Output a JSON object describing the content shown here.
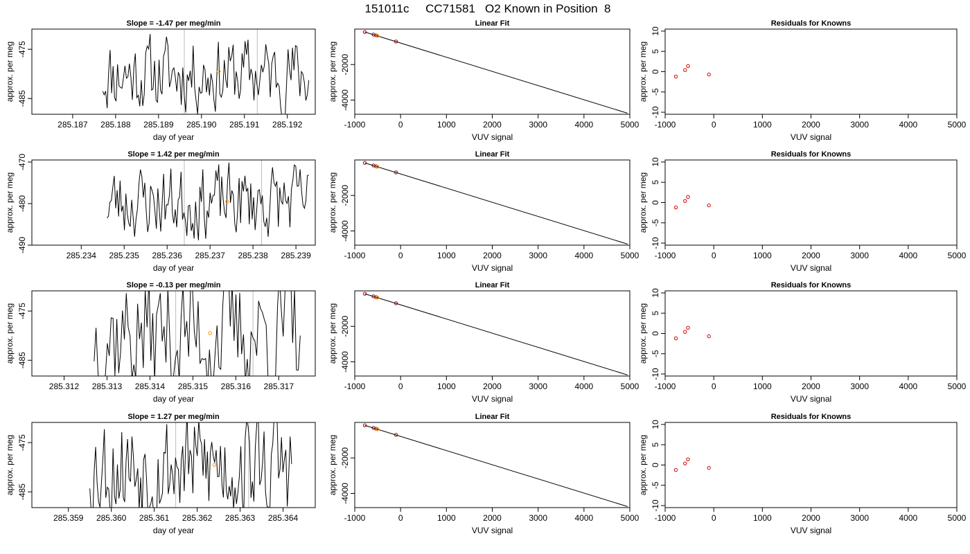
{
  "figure_title": "151011c     CC71581   O2 Known in Position  8",
  "chart_data": [
    {
      "type": "line",
      "title": "Slope =  -1.47  per meg/min",
      "xlabel": "day of year",
      "ylabel": "approx. per meg",
      "xlim": [
        285.18605,
        285.19265
      ],
      "ylim": [
        -488.2,
        -470.9
      ],
      "xticks": [
        "285.187",
        "285.188",
        "285.189",
        "285.190",
        "285.191",
        "285.192"
      ],
      "xtick_values": [
        285.187,
        285.188,
        285.189,
        285.19,
        285.191,
        285.192
      ],
      "yticks": [
        "-485",
        "-475"
      ],
      "ytick_values": [
        -485,
        -475
      ],
      "vlines": [
        285.1896,
        285.1913
      ],
      "series": [
        {
          "x_start": 285.1877,
          "x_end": 285.1925,
          "n": 140,
          "center": -480,
          "amplitude": 6.5,
          "seed": 11,
          "color": "#000000"
        }
      ],
      "points": [
        {
          "x": 285.1904,
          "y": -479.5,
          "color": "#ff8c00"
        }
      ],
      "grid": false
    },
    {
      "type": "line",
      "title": "Linear Fit",
      "xlabel": "VUV signal",
      "ylabel": "approx. per meg",
      "xlim": [
        -1000,
        5000
      ],
      "ylim": [
        -4800,
        0
      ],
      "xticks": [
        "-1000",
        "0",
        "1000",
        "2000",
        "3000",
        "4000",
        "5000"
      ],
      "xtick_values": [
        -1000,
        0,
        1000,
        2000,
        3000,
        4000,
        5000
      ],
      "yticks": [
        "-4000",
        "-2000"
      ],
      "ytick_values": [
        -4000,
        -2000
      ],
      "line": {
        "x": [
          -780,
          4950
        ],
        "y": [
          -165,
          -4740
        ],
        "color": "#000000"
      },
      "points": [
        {
          "x": -780,
          "y": -165,
          "color": "#8b0000"
        },
        {
          "x": -590,
          "y": -310,
          "color": "#8b0000"
        },
        {
          "x": -530,
          "y": -360,
          "color": "#8b0000"
        },
        {
          "x": -505,
          "y": -380,
          "color": "#ff8c00"
        },
        {
          "x": -100,
          "y": -700,
          "color": "#8b0000"
        }
      ],
      "grid": false
    },
    {
      "type": "scatter",
      "title": "Residuals for Knowns",
      "xlabel": "VUV signal",
      "ylabel": "approx. per meg",
      "xlim": [
        -1000,
        5000
      ],
      "ylim": [
        -10.5,
        10.5
      ],
      "xticks": [
        "-1000",
        "0",
        "1000",
        "2000",
        "3000",
        "4000",
        "5000"
      ],
      "xtick_values": [
        -1000,
        0,
        1000,
        2000,
        3000,
        4000,
        5000
      ],
      "yticks": [
        "-10",
        "-5",
        "0",
        "5",
        "10"
      ],
      "ytick_values": [
        -10,
        -5,
        0,
        5,
        10
      ],
      "points": [
        {
          "x": -780,
          "y": -1.2,
          "color": "#cc0000"
        },
        {
          "x": -590,
          "y": 0.4,
          "color": "#cc0000"
        },
        {
          "x": -530,
          "y": 1.4,
          "color": "#cc0000"
        },
        {
          "x": -100,
          "y": -0.7,
          "color": "#cc0000"
        }
      ],
      "grid": false
    },
    {
      "type": "line",
      "title": "Slope =  1.42  per meg/min",
      "xlabel": "day of year",
      "ylabel": "approx. per meg",
      "xlim": [
        285.23285,
        285.23945
      ],
      "ylim": [
        -490,
        -469.5
      ],
      "xticks": [
        "285.234",
        "285.235",
        "285.236",
        "285.237",
        "285.238",
        "285.239"
      ],
      "xtick_values": [
        285.234,
        285.235,
        285.236,
        285.237,
        285.238,
        285.239
      ],
      "yticks": [
        "-490",
        "-480",
        "-470"
      ],
      "ytick_values": [
        -490,
        -480,
        -470
      ],
      "vlines": [
        285.2364,
        285.2382
      ],
      "series": [
        {
          "x_start": 285.2346,
          "x_end": 285.2393,
          "n": 140,
          "center": -479.5,
          "amplitude": 7.5,
          "seed": 23,
          "color": "#000000"
        }
      ],
      "points": [
        {
          "x": 285.2374,
          "y": -479.5,
          "color": "#ff8c00"
        }
      ],
      "grid": false
    },
    {
      "type": "line",
      "title": "Linear Fit",
      "xlabel": "VUV signal",
      "ylabel": "approx. per meg",
      "xlim": [
        -1000,
        5000
      ],
      "ylim": [
        -4800,
        0
      ],
      "xticks": [
        "-1000",
        "0",
        "1000",
        "2000",
        "3000",
        "4000",
        "5000"
      ],
      "xtick_values": [
        -1000,
        0,
        1000,
        2000,
        3000,
        4000,
        5000
      ],
      "yticks": [
        "-4000",
        "-2000"
      ],
      "ytick_values": [
        -4000,
        -2000
      ],
      "line": {
        "x": [
          -780,
          4950
        ],
        "y": [
          -165,
          -4740
        ],
        "color": "#000000"
      },
      "points": [
        {
          "x": -780,
          "y": -165,
          "color": "#8b0000"
        },
        {
          "x": -590,
          "y": -310,
          "color": "#8b0000"
        },
        {
          "x": -530,
          "y": -360,
          "color": "#8b0000"
        },
        {
          "x": -505,
          "y": -380,
          "color": "#ff8c00"
        },
        {
          "x": -100,
          "y": -700,
          "color": "#8b0000"
        }
      ],
      "grid": false
    },
    {
      "type": "scatter",
      "title": "Residuals for Knowns",
      "xlabel": "VUV signal",
      "ylabel": "approx. per meg",
      "xlim": [
        -1000,
        5000
      ],
      "ylim": [
        -10.5,
        10.5
      ],
      "xticks": [
        "-1000",
        "0",
        "1000",
        "2000",
        "3000",
        "4000",
        "5000"
      ],
      "xtick_values": [
        -1000,
        0,
        1000,
        2000,
        3000,
        4000,
        5000
      ],
      "yticks": [
        "-10",
        "-5",
        "0",
        "5",
        "10"
      ],
      "ytick_values": [
        -10,
        -5,
        0,
        5,
        10
      ],
      "points": [
        {
          "x": -780,
          "y": -1.2,
          "color": "#cc0000"
        },
        {
          "x": -590,
          "y": 0.4,
          "color": "#cc0000"
        },
        {
          "x": -530,
          "y": 1.4,
          "color": "#cc0000"
        },
        {
          "x": -100,
          "y": -0.7,
          "color": "#cc0000"
        }
      ],
      "grid": false
    },
    {
      "type": "line",
      "title": "Slope =  -0.13  per meg/min",
      "xlabel": "day of year",
      "ylabel": "approx. per meg",
      "xlim": [
        285.31125,
        285.31785
      ],
      "ylim": [
        -488.2,
        -470.9
      ],
      "xticks": [
        "285.312",
        "285.313",
        "285.314",
        "285.315",
        "285.316",
        "285.317"
      ],
      "xtick_values": [
        285.312,
        285.313,
        285.314,
        285.315,
        285.316,
        285.317
      ],
      "yticks": [
        "-485",
        "-475"
      ],
      "ytick_values": [
        -485,
        -475
      ],
      "vlines": [
        285.3146,
        285.3164
      ],
      "series": [
        {
          "x_start": 285.3127,
          "x_end": 285.3175,
          "n": 110,
          "center": -479.5,
          "amplitude": 11,
          "seed": 37,
          "color": "#000000"
        }
      ],
      "points": [
        {
          "x": 285.3154,
          "y": -479.5,
          "color": "#ff8c00"
        }
      ],
      "grid": false
    },
    {
      "type": "line",
      "title": "Linear Fit",
      "xlabel": "VUV signal",
      "ylabel": "approx. per meg",
      "xlim": [
        -1000,
        5000
      ],
      "ylim": [
        -4800,
        0
      ],
      "xticks": [
        "-1000",
        "0",
        "1000",
        "2000",
        "3000",
        "4000",
        "5000"
      ],
      "xtick_values": [
        -1000,
        0,
        1000,
        2000,
        3000,
        4000,
        5000
      ],
      "yticks": [
        "-4000",
        "-2000"
      ],
      "ytick_values": [
        -4000,
        -2000
      ],
      "line": {
        "x": [
          -780,
          4950
        ],
        "y": [
          -165,
          -4740
        ],
        "color": "#000000"
      },
      "points": [
        {
          "x": -780,
          "y": -165,
          "color": "#8b0000"
        },
        {
          "x": -590,
          "y": -310,
          "color": "#8b0000"
        },
        {
          "x": -530,
          "y": -360,
          "color": "#8b0000"
        },
        {
          "x": -505,
          "y": -380,
          "color": "#ff8c00"
        },
        {
          "x": -100,
          "y": -700,
          "color": "#8b0000"
        }
      ],
      "grid": false
    },
    {
      "type": "scatter",
      "title": "Residuals for Knowns",
      "xlabel": "VUV signal",
      "ylabel": "approx. per meg",
      "xlim": [
        -1000,
        5000
      ],
      "ylim": [
        -10.5,
        10.5
      ],
      "xticks": [
        "-1000",
        "0",
        "1000",
        "2000",
        "3000",
        "4000",
        "5000"
      ],
      "xtick_values": [
        -1000,
        0,
        1000,
        2000,
        3000,
        4000,
        5000
      ],
      "yticks": [
        "-10",
        "-5",
        "0",
        "5",
        "10"
      ],
      "ytick_values": [
        -10,
        -5,
        0,
        5,
        10
      ],
      "points": [
        {
          "x": -780,
          "y": -1.2,
          "color": "#cc0000"
        },
        {
          "x": -590,
          "y": 0.4,
          "color": "#cc0000"
        },
        {
          "x": -530,
          "y": 1.4,
          "color": "#cc0000"
        },
        {
          "x": -100,
          "y": -0.7,
          "color": "#cc0000"
        }
      ],
      "grid": false
    },
    {
      "type": "line",
      "title": "Slope =  1.27  per meg/min",
      "xlabel": "day of year",
      "ylabel": "approx. per meg",
      "xlim": [
        285.35815,
        285.36475
      ],
      "ylim": [
        -488.2,
        -470.9
      ],
      "xticks": [
        "285.359",
        "285.360",
        "285.361",
        "285.362",
        "285.363",
        "285.364"
      ],
      "xtick_values": [
        285.359,
        285.36,
        285.361,
        285.362,
        285.363,
        285.364
      ],
      "yticks": [
        "-485",
        "-475"
      ],
      "ytick_values": [
        -485,
        -475
      ],
      "vlines": [
        285.3615,
        285.3632
      ],
      "series": [
        {
          "x_start": 285.3595,
          "x_end": 285.3642,
          "n": 140,
          "center": -479.5,
          "amplitude": 9.5,
          "seed": 53,
          "color": "#000000"
        }
      ],
      "points": [
        {
          "x": 285.3624,
          "y": -479.5,
          "color": "#ff8c00"
        }
      ],
      "grid": false
    },
    {
      "type": "line",
      "title": "Linear Fit",
      "xlabel": "VUV signal",
      "ylabel": "approx. per meg",
      "xlim": [
        -1000,
        5000
      ],
      "ylim": [
        -4800,
        0
      ],
      "xticks": [
        "-1000",
        "0",
        "1000",
        "2000",
        "3000",
        "4000",
        "5000"
      ],
      "xtick_values": [
        -1000,
        0,
        1000,
        2000,
        3000,
        4000,
        5000
      ],
      "yticks": [
        "-4000",
        "-2000"
      ],
      "ytick_values": [
        -4000,
        -2000
      ],
      "line": {
        "x": [
          -780,
          4950
        ],
        "y": [
          -165,
          -4740
        ],
        "color": "#000000"
      },
      "points": [
        {
          "x": -780,
          "y": -165,
          "color": "#8b0000"
        },
        {
          "x": -590,
          "y": -310,
          "color": "#8b0000"
        },
        {
          "x": -530,
          "y": -360,
          "color": "#8b0000"
        },
        {
          "x": -505,
          "y": -380,
          "color": "#ff8c00"
        },
        {
          "x": -100,
          "y": -700,
          "color": "#8b0000"
        }
      ],
      "grid": false
    },
    {
      "type": "scatter",
      "title": "Residuals for Knowns",
      "xlabel": "VUV signal",
      "ylabel": "approx. per meg",
      "xlim": [
        -1000,
        5000
      ],
      "ylim": [
        -10.5,
        10.5
      ],
      "xticks": [
        "-1000",
        "0",
        "1000",
        "2000",
        "3000",
        "4000",
        "5000"
      ],
      "xtick_values": [
        -1000,
        0,
        1000,
        2000,
        3000,
        4000,
        5000
      ],
      "yticks": [
        "-10",
        "-5",
        "0",
        "5",
        "10"
      ],
      "ytick_values": [
        -10,
        -5,
        0,
        5,
        10
      ],
      "points": [
        {
          "x": -780,
          "y": -1.2,
          "color": "#cc0000"
        },
        {
          "x": -590,
          "y": 0.4,
          "color": "#cc0000"
        },
        {
          "x": -530,
          "y": 1.4,
          "color": "#cc0000"
        },
        {
          "x": -100,
          "y": -0.7,
          "color": "#cc0000"
        }
      ],
      "grid": false
    }
  ]
}
